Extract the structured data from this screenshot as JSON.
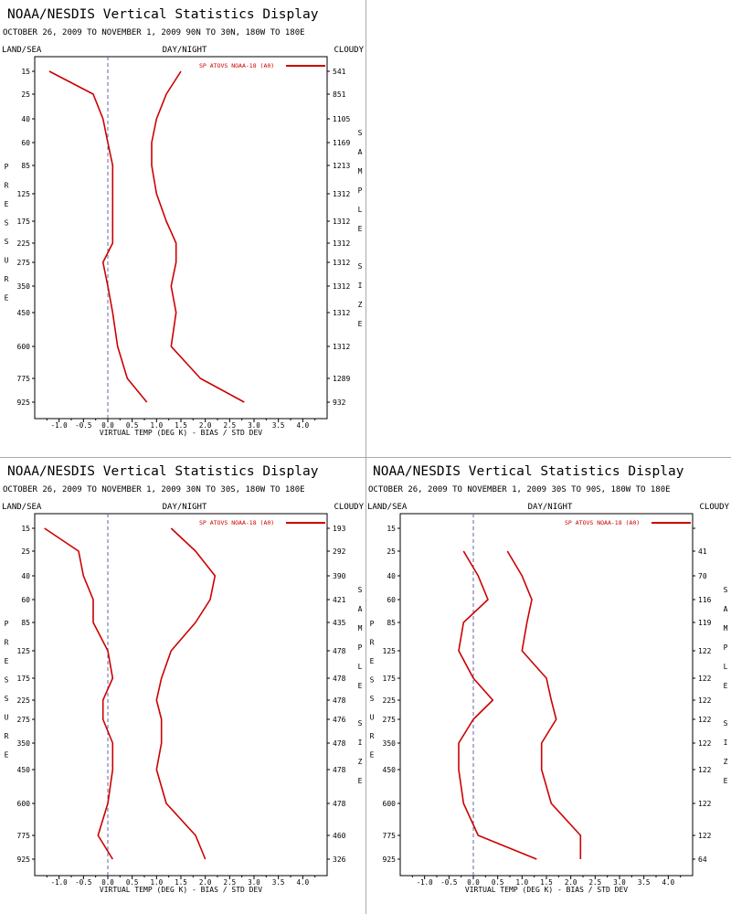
{
  "colors": {
    "series": "#cc0000",
    "frame": "#000000",
    "zero_line": "#6666aa"
  },
  "chart_data": [
    {
      "type": "line",
      "title": "NOAA/NESDIS Vertical Statistics Display",
      "subtitle": "OCTOBER 26, 2009 TO NOVEMBER 1, 2009 90N TO 30N, 180W TO 180E",
      "corner_labels": [
        "LAND/SEA",
        "DAY/NIGHT",
        "CLOUDY"
      ],
      "legend": "SP ATOVS NOAA-18 (A0)",
      "xlabel": "VIRTUAL TEMP (DEG K) - BIAS / STD DEV",
      "ylabel": "PRESSURE",
      "right_label": "SAMPLE SIZE",
      "xlim": [
        -1.5,
        4.5
      ],
      "xticks": [
        "-1.0",
        "-0.5",
        "0.0",
        "0.5",
        "1.0",
        "1.5",
        "2.0",
        "2.5",
        "3.0",
        "3.5",
        "4.0"
      ],
      "pressure_levels": [
        "15",
        "25",
        "40",
        "60",
        "85",
        "125",
        "175",
        "225",
        "275",
        "350",
        "450",
        "600",
        "775",
        "925"
      ],
      "sample_sizes": [
        "541",
        "851",
        "1105",
        "1169",
        "1213",
        "1312",
        "1312",
        "1312",
        "1312",
        "1312",
        "1312",
        "1312",
        "1289",
        "932"
      ],
      "series": [
        {
          "values": [
            -1.2,
            -0.3,
            -0.1,
            0.0,
            0.1,
            0.1,
            0.1,
            0.1,
            -0.1,
            0.0,
            0.1,
            0.2,
            0.4,
            0.8
          ]
        },
        {
          "values": [
            1.5,
            1.2,
            1.0,
            0.9,
            0.9,
            1.0,
            1.2,
            1.4,
            1.4,
            1.3,
            1.4,
            1.3,
            1.9,
            2.8
          ]
        }
      ]
    },
    {
      "type": "line",
      "title": "NOAA/NESDIS Vertical Statistics Display",
      "subtitle": "OCTOBER 26, 2009 TO NOVEMBER 1, 2009 30N TO 30S, 180W TO 180E",
      "corner_labels": [
        "LAND/SEA",
        "DAY/NIGHT",
        "CLOUDY"
      ],
      "legend": "SP ATOVS NOAA-18 (A0)",
      "xlabel": "VIRTUAL TEMP (DEG K) - BIAS / STD DEV",
      "ylabel": "PRESSURE",
      "right_label": "SAMPLE SIZE",
      "xlim": [
        -1.5,
        4.5
      ],
      "xticks": [
        "-1.0",
        "-0.5",
        "0.0",
        "0.5",
        "1.0",
        "1.5",
        "2.0",
        "2.5",
        "3.0",
        "3.5",
        "4.0"
      ],
      "pressure_levels": [
        "15",
        "25",
        "40",
        "60",
        "85",
        "125",
        "175",
        "225",
        "275",
        "350",
        "450",
        "600",
        "775",
        "925"
      ],
      "sample_sizes": [
        "193",
        "292",
        "390",
        "421",
        "435",
        "478",
        "478",
        "478",
        "476",
        "478",
        "478",
        "478",
        "460",
        "326"
      ],
      "series": [
        {
          "values": [
            -1.3,
            -0.6,
            -0.5,
            -0.3,
            -0.3,
            0.0,
            0.1,
            -0.1,
            -0.1,
            0.1,
            0.1,
            0.0,
            -0.2,
            0.1
          ]
        },
        {
          "values": [
            1.3,
            1.8,
            2.2,
            2.1,
            1.8,
            1.3,
            1.1,
            1.0,
            1.1,
            1.1,
            1.0,
            1.2,
            1.8,
            2.0
          ]
        }
      ]
    },
    {
      "type": "line",
      "title": "NOAA/NESDIS Vertical Statistics Display",
      "subtitle": "OCTOBER 26, 2009 TO NOVEMBER 1, 2009 30S TO 90S, 180W TO 180E",
      "corner_labels": [
        "LAND/SEA",
        "DAY/NIGHT",
        "CLOUDY"
      ],
      "legend": "SP ATOVS NOAA-18 (A0)",
      "xlabel": "VIRTUAL TEMP (DEG K) - BIAS / STD DEV",
      "ylabel": "PRESSURE",
      "right_label": "SAMPLE SIZE",
      "xlim": [
        -1.5,
        4.5
      ],
      "xticks": [
        "-1.0",
        "-0.5",
        "0.0",
        "0.5",
        "1.0",
        "1.5",
        "2.0",
        "2.5",
        "3.0",
        "3.5",
        "4.0"
      ],
      "pressure_levels": [
        "15",
        "25",
        "40",
        "60",
        "85",
        "125",
        "175",
        "225",
        "275",
        "350",
        "450",
        "600",
        "775",
        "925"
      ],
      "sample_sizes": [
        "",
        "41",
        "70",
        "116",
        "119",
        "122",
        "122",
        "122",
        "122",
        "122",
        "122",
        "122",
        "122",
        "64"
      ],
      "series": [
        {
          "values": [
            null,
            -0.2,
            0.1,
            0.3,
            -0.2,
            -0.3,
            0.0,
            0.4,
            0.0,
            -0.3,
            -0.3,
            -0.2,
            0.1,
            1.3
          ]
        },
        {
          "values": [
            null,
            0.7,
            1.0,
            1.2,
            1.1,
            1.0,
            1.5,
            1.6,
            1.7,
            1.4,
            1.4,
            1.6,
            2.2,
            2.2
          ]
        }
      ]
    }
  ]
}
